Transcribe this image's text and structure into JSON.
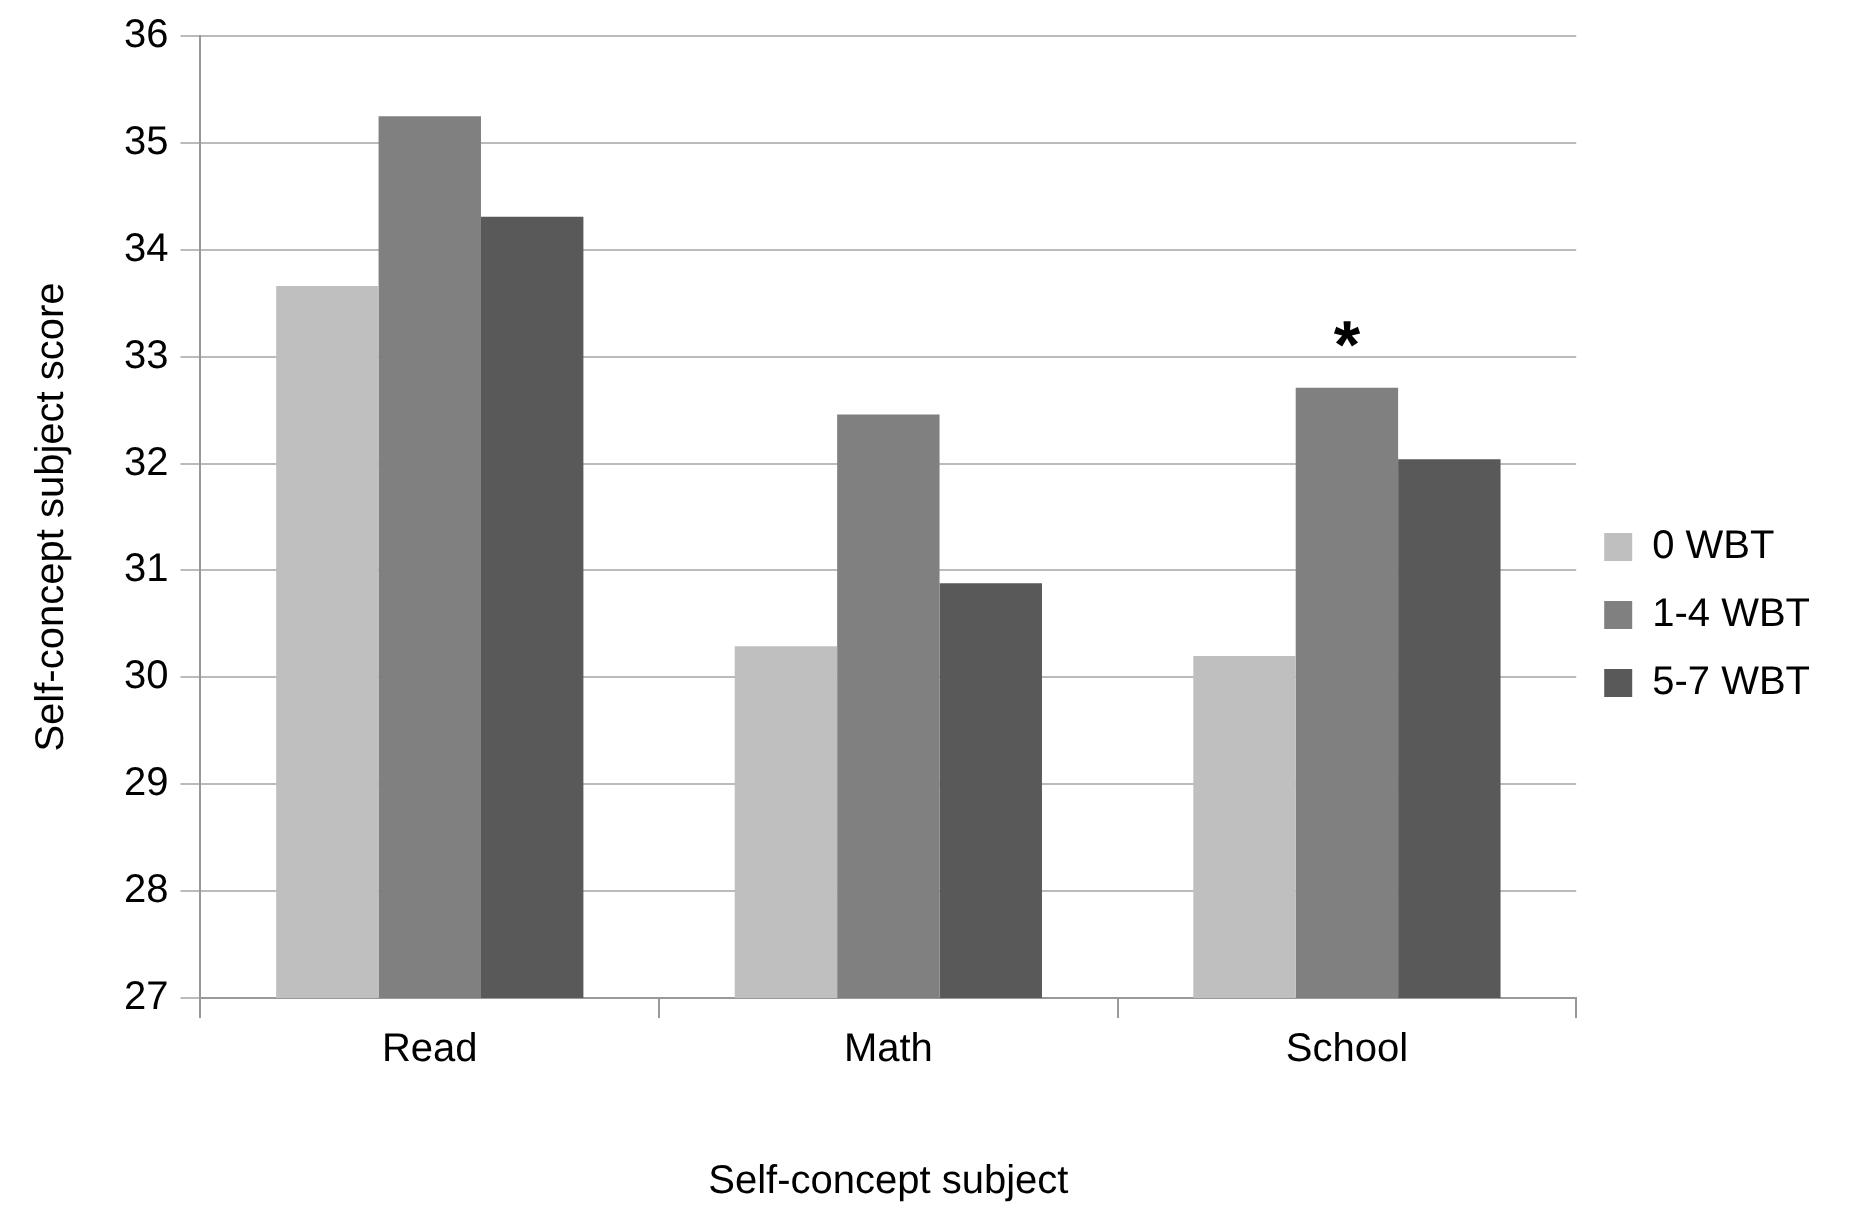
{
  "chart_data": {
    "type": "bar",
    "xlabel": "Self-concept subject",
    "ylabel": "Self-concept subject score",
    "categories": [
      "Read",
      "Math",
      "School"
    ],
    "series": [
      {
        "name": "0 WBT",
        "color": "#bfbfbf",
        "values": [
          33.66,
          30.29,
          30.2
        ]
      },
      {
        "name": "1-4 WBT",
        "color": "#808080",
        "values": [
          35.25,
          32.46,
          32.71
        ]
      },
      {
        "name": "5-7 WBT",
        "color": "#595959",
        "values": [
          34.31,
          30.88,
          32.04
        ]
      }
    ],
    "ylim": [
      27,
      36
    ],
    "yticks": [
      27,
      28,
      29,
      30,
      31,
      32,
      33,
      34,
      35,
      36
    ],
    "grid": "y",
    "legend": "right",
    "annotations": [
      {
        "text": "*",
        "x": "School",
        "y": 32.71
      }
    ]
  }
}
